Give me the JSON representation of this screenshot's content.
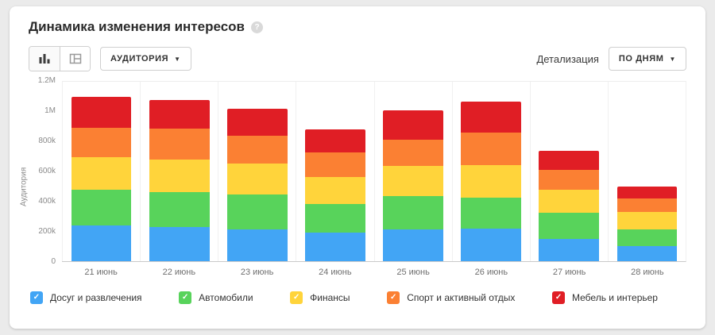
{
  "page": {
    "title": "Динамика изменения интересов",
    "help": "?"
  },
  "toolbar": {
    "audience_dropdown": "АУДИТОРИЯ",
    "detail_label": "Детализация",
    "detail_value": "ПО ДНЯМ",
    "caret": "▼"
  },
  "legend": {
    "check": "✓"
  },
  "chart_data": {
    "type": "bar",
    "stacked": true,
    "title": "Динамика изменения интересов",
    "xlabel": "",
    "ylabel": "Аудитория",
    "ylim": [
      0,
      1200000
    ],
    "grid": "vertical-separators",
    "legend_position": "bottom",
    "yticks": [
      {
        "value": 0,
        "label": "0"
      },
      {
        "value": 200000,
        "label": "200k"
      },
      {
        "value": 400000,
        "label": "400k"
      },
      {
        "value": 600000,
        "label": "600k"
      },
      {
        "value": 800000,
        "label": "800k"
      },
      {
        "value": 1000000,
        "label": "1M"
      },
      {
        "value": 1200000,
        "label": "1.2M"
      }
    ],
    "categories": [
      "21 июнь",
      "22 июнь",
      "23 июнь",
      "24 июнь",
      "25 июнь",
      "26 июнь",
      "27 июнь",
      "28 июнь"
    ],
    "series": [
      {
        "key": "leisure",
        "name": "Досуг и развлечения",
        "color": "#42A5F5",
        "values": [
          240000,
          230000,
          210000,
          190000,
          210000,
          220000,
          150000,
          100000
        ]
      },
      {
        "key": "auto",
        "name": "Автомобили",
        "color": "#58D35B",
        "values": [
          240000,
          230000,
          235000,
          190000,
          225000,
          205000,
          175000,
          110000
        ]
      },
      {
        "key": "finance",
        "name": "Финансы",
        "color": "#FFD43B",
        "values": [
          215000,
          220000,
          210000,
          185000,
          200000,
          220000,
          155000,
          120000
        ]
      },
      {
        "key": "sport",
        "name": "Спорт и активный отдых",
        "color": "#FB8033",
        "values": [
          195000,
          205000,
          185000,
          160000,
          175000,
          215000,
          130000,
          90000
        ]
      },
      {
        "key": "furniture",
        "name": "Мебель и интерьер",
        "color": "#E01E25",
        "values": [
          210000,
          195000,
          180000,
          155000,
          200000,
          210000,
          130000,
          80000
        ]
      }
    ]
  }
}
